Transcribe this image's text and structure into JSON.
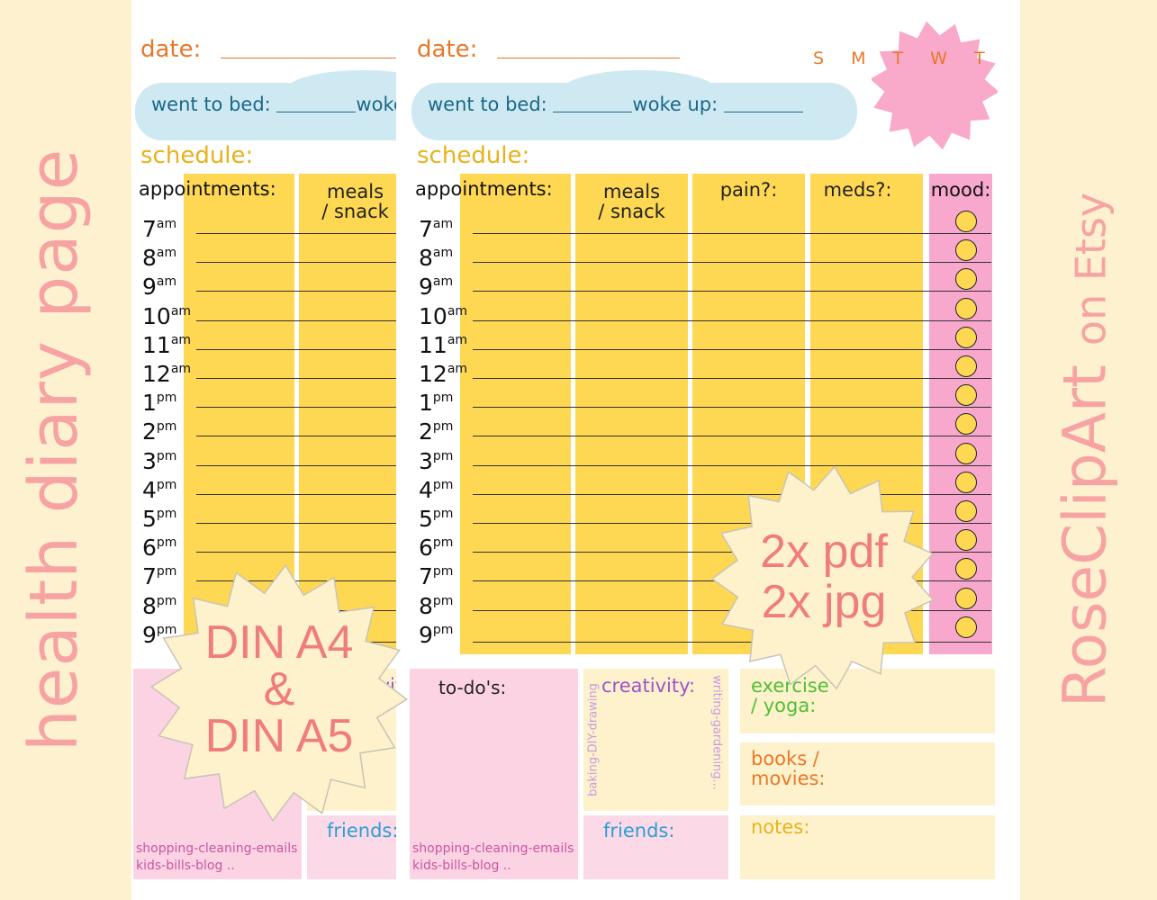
{
  "side": {
    "left_title": "health diary page",
    "right_brand": "RoseClipArt",
    "right_on": "on Etsy"
  },
  "planner": {
    "date_label": "date:",
    "went_to_bed": "went to bed:",
    "woke_up": "woke up:",
    "weekdays": "S M T W T F S",
    "schedule_label": "schedule:",
    "columns": {
      "appointments": "appointments:",
      "meals_1": "meals",
      "meals_2": "/ snack",
      "pain": "pain?:",
      "meds": "meds?:",
      "mood": "mood:"
    },
    "times": [
      {
        "h": "7",
        "s": "am"
      },
      {
        "h": "8",
        "s": "am"
      },
      {
        "h": "9",
        "s": "am"
      },
      {
        "h": "10",
        "s": "am"
      },
      {
        "h": "11",
        "s": "am"
      },
      {
        "h": "12",
        "s": "am"
      },
      {
        "h": "1",
        "s": "pm"
      },
      {
        "h": "2",
        "s": "pm"
      },
      {
        "h": "3",
        "s": "pm"
      },
      {
        "h": "4",
        "s": "pm"
      },
      {
        "h": "5",
        "s": "pm"
      },
      {
        "h": "6",
        "s": "pm"
      },
      {
        "h": "7",
        "s": "pm"
      },
      {
        "h": "8",
        "s": "pm"
      },
      {
        "h": "9",
        "s": "pm"
      }
    ],
    "todo_label": "to-do's:",
    "todo_note_1": "shopping-cleaning-emails",
    "todo_note_2": "kids-bills-blog ..",
    "creativity_label": "creativity:",
    "creativity_left_note": "baking-DIY-drawing",
    "creativity_right_note": "writing-gardening...",
    "friends_label": "friends:",
    "exercise_1": "exercise",
    "exercise_2": "/ yoga:",
    "books_1": "books /",
    "books_2": "movies:",
    "notes_label": "notes:"
  },
  "badges": {
    "size": {
      "l1": "DIN A4",
      "l2": "&",
      "l3": "DIN A5"
    },
    "files": {
      "l1": "2x pdf",
      "l2": "2x jpg"
    }
  }
}
